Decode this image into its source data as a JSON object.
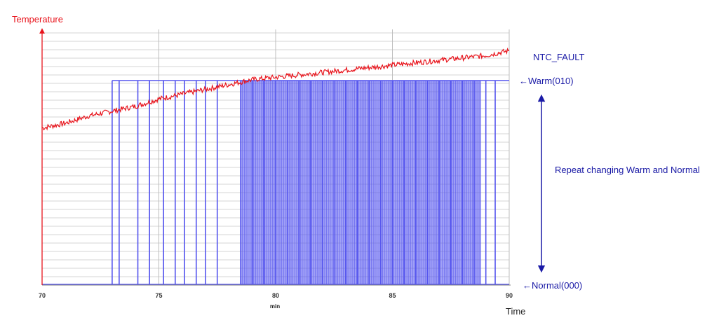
{
  "chart_data": {
    "type": "line",
    "title": "",
    "xlabel": "min",
    "xlabel_right": "Time",
    "ylabel": "Temperature",
    "x_ticks": [
      "70",
      "75",
      "80",
      "85",
      "90"
    ],
    "xlim": [
      70,
      90
    ],
    "ylim_state": [
      0,
      1
    ],
    "grid": true,
    "series": [
      {
        "name": "Temperature",
        "color": "#e8141c",
        "axis": "relative",
        "x": [
          70,
          71,
          72,
          73,
          74,
          75,
          76,
          77,
          78,
          79,
          80,
          81,
          82,
          83,
          84,
          85,
          86,
          87,
          88,
          89,
          90
        ],
        "y": [
          0.65,
          0.67,
          0.7,
          0.72,
          0.74,
          0.77,
          0.79,
          0.81,
          0.83,
          0.85,
          0.86,
          0.87,
          0.88,
          0.89,
          0.9,
          0.91,
          0.92,
          0.93,
          0.94,
          0.95,
          0.97
        ]
      },
      {
        "name": "NTC_FAULT",
        "color": "#5555ee",
        "axis": "state",
        "transitions_to_warm_x": [
          73.0,
          73.3,
          74.1,
          74.6,
          75.2,
          75.7,
          76.1,
          76.6,
          77.0,
          77.5,
          78.5,
          79.0,
          79.5,
          80.0,
          80.5,
          81.0,
          81.5,
          82.0,
          82.5,
          83.0,
          83.5,
          84.0,
          84.5,
          85.0,
          85.5,
          86.0,
          86.5,
          87.0,
          87.5,
          88.0,
          88.5,
          89.0,
          89.4
        ]
      }
    ]
  },
  "labels": {
    "ntc_fault": "NTC_FAULT",
    "warm": "←Warm(010)",
    "normal": "←Normal(000)",
    "repeat": "Repeat changing Warm and Normal"
  },
  "colors": {
    "temperature": "#e8141c",
    "fault": "#5555ee",
    "annotation": "#1a1aa6",
    "grid": "#c8c8c8",
    "axis": "#7f7f7f"
  }
}
